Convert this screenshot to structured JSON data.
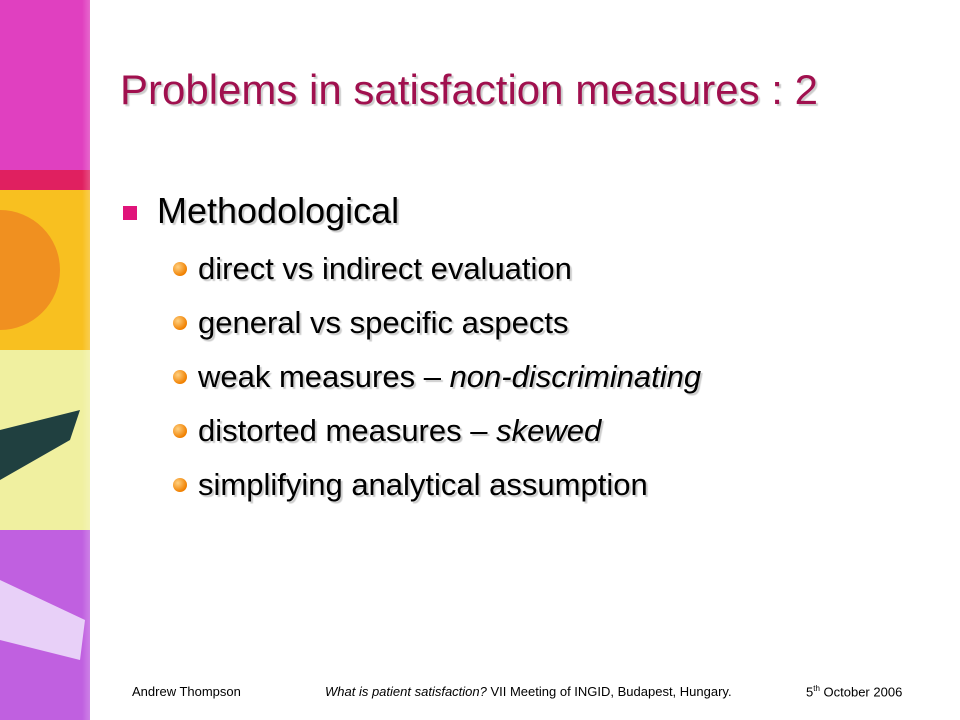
{
  "header": {
    "title": "Problems in satisfaction measures : 2"
  },
  "bullets": [
    {
      "text": "Methodological",
      "items": [
        {
          "text": "direct vs indirect evaluation"
        },
        {
          "text": "general vs specific aspects"
        },
        {
          "text": "weak measures – ",
          "emphasis": "non-discriminating"
        },
        {
          "text": "distorted measures – ",
          "emphasis": "skewed"
        },
        {
          "text": "simplifying analytical assumption"
        }
      ]
    }
  ],
  "footer": {
    "author": "Andrew Thompson",
    "talk_title": "What is patient satisfaction?",
    "event": " VII Meeting of INGID, Budapest, Hungary.",
    "date": {
      "day": "5",
      "suffix": "th",
      "rest": " October 2006"
    }
  }
}
